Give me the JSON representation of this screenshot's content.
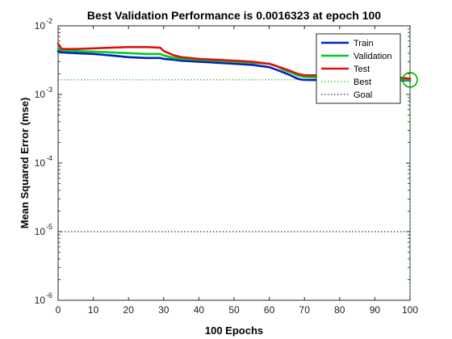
{
  "chart_data": {
    "type": "line",
    "title": "Best Validation Performance is 0.0016323 at epoch 100",
    "xlabel": "100 Epochs",
    "ylabel": "Mean Squared Error  (mse)",
    "xlim": [
      0,
      100
    ],
    "ylim": [
      1e-06,
      0.01
    ],
    "yscale": "log",
    "xticks": [
      "0",
      "10",
      "20",
      "30",
      "40",
      "50",
      "60",
      "70",
      "80",
      "90",
      "100"
    ],
    "yticks": [
      {
        "base": "10",
        "exp": "-6",
        "value": 1e-06
      },
      {
        "base": "10",
        "exp": "-5",
        "value": 1e-05
      },
      {
        "base": "10",
        "exp": "-4",
        "value": 0.0001
      },
      {
        "base": "10",
        "exp": "-3",
        "value": 0.001
      },
      {
        "base": "10",
        "exp": "-2",
        "value": 0.01
      }
    ],
    "legend_position": "top-right",
    "series": [
      {
        "name": "Train",
        "color": "#0022bb",
        "x": [
          0,
          1,
          5,
          10,
          15,
          20,
          25,
          29,
          30,
          33,
          35,
          40,
          45,
          50,
          55,
          60,
          62,
          64,
          66,
          68,
          69,
          70,
          75,
          80,
          85,
          90,
          95,
          100
        ],
        "y": [
          0.0043,
          0.0041,
          0.004,
          0.0039,
          0.0037,
          0.0035,
          0.0034,
          0.0034,
          0.0033,
          0.0032,
          0.0031,
          0.003,
          0.0029,
          0.0028,
          0.0027,
          0.0025,
          0.0023,
          0.0021,
          0.0019,
          0.0017,
          0.00165,
          0.00163,
          0.00162,
          0.00161,
          0.0016,
          0.0016,
          0.0016,
          0.0016
        ]
      },
      {
        "name": "Validation",
        "color": "#00cc22",
        "x": [
          0,
          1,
          5,
          10,
          15,
          20,
          25,
          29,
          30,
          33,
          35,
          40,
          45,
          50,
          55,
          60,
          62,
          64,
          66,
          68,
          70,
          75,
          80,
          85,
          90,
          95,
          100
        ],
        "y": [
          0.0047,
          0.0044,
          0.0043,
          0.0042,
          0.0041,
          0.004,
          0.0039,
          0.0039,
          0.0037,
          0.0034,
          0.0033,
          0.0032,
          0.0031,
          0.003,
          0.0029,
          0.0028,
          0.0026,
          0.0023,
          0.0021,
          0.0019,
          0.0018,
          0.00175,
          0.00172,
          0.0017,
          0.00168,
          0.00165,
          0.0016323
        ]
      },
      {
        "name": "Test",
        "color": "#dd1111",
        "x": [
          0,
          1,
          5,
          10,
          15,
          20,
          25,
          29,
          30,
          33,
          35,
          40,
          45,
          50,
          55,
          60,
          62,
          64,
          66,
          68,
          70,
          75,
          80,
          85,
          90,
          95,
          100
        ],
        "y": [
          0.0055,
          0.0046,
          0.0046,
          0.0047,
          0.0048,
          0.0049,
          0.0049,
          0.0048,
          0.0043,
          0.0037,
          0.0035,
          0.0033,
          0.0032,
          0.0031,
          0.003,
          0.0028,
          0.0026,
          0.0024,
          0.0022,
          0.002,
          0.0019,
          0.0019,
          0.00188,
          0.00185,
          0.00182,
          0.0018,
          0.0017
        ]
      }
    ],
    "best": {
      "label": "Best",
      "epoch": 100,
      "value": 0.0016323,
      "color": "#00aa00"
    },
    "goal": {
      "label": "Goal",
      "value": 1e-05
    }
  }
}
